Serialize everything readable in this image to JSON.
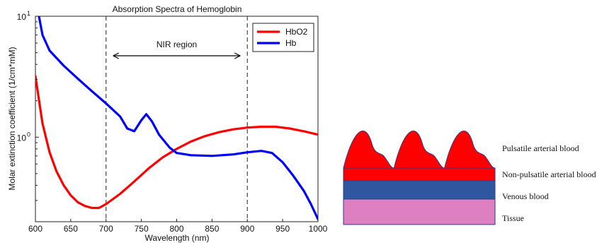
{
  "chart_data": {
    "type": "line",
    "title": "Absorption Spectra of Hemoglobin",
    "xlabel": "Wavelength (nm)",
    "ylabel": "Molar extinction coefficient (1/cm*mM)",
    "xlim": [
      600,
      1000
    ],
    "ylim": [
      0.2,
      10
    ],
    "yscale": "log",
    "xticks": [
      "600",
      "650",
      "700",
      "750",
      "800",
      "850",
      "900",
      "950",
      "1000"
    ],
    "yticks": [
      {
        "value": 1,
        "base": "10",
        "exp": "0"
      },
      {
        "value": 10,
        "base": "10",
        "exp": "1"
      }
    ],
    "legend_position": "top-right",
    "series": [
      {
        "name": "HbO2",
        "color": "#ff0000",
        "x": [
          600,
          610,
          620,
          630,
          640,
          650,
          660,
          670,
          680,
          690,
          700,
          720,
          740,
          760,
          780,
          800,
          820,
          840,
          860,
          880,
          900,
          920,
          940,
          960,
          980,
          1000
        ],
        "y": [
          3.2,
          1.3,
          0.75,
          0.52,
          0.4,
          0.33,
          0.29,
          0.27,
          0.26,
          0.26,
          0.28,
          0.34,
          0.43,
          0.55,
          0.68,
          0.8,
          0.92,
          1.02,
          1.1,
          1.16,
          1.2,
          1.22,
          1.22,
          1.18,
          1.12,
          1.05
        ]
      },
      {
        "name": "Hb",
        "color": "#0000ff",
        "x": [
          605,
          610,
          620,
          640,
          660,
          680,
          700,
          720,
          730,
          740,
          750,
          757,
          765,
          775,
          790,
          800,
          820,
          850,
          880,
          900,
          920,
          935,
          950,
          965,
          980,
          990,
          1000
        ],
        "y": [
          10,
          7.0,
          5.2,
          3.9,
          3.05,
          2.4,
          1.9,
          1.48,
          1.18,
          1.12,
          1.38,
          1.55,
          1.35,
          1.05,
          0.82,
          0.74,
          0.71,
          0.7,
          0.72,
          0.75,
          0.77,
          0.74,
          0.62,
          0.48,
          0.36,
          0.28,
          0.21
        ]
      }
    ],
    "annotations": [
      {
        "text": "NIR region",
        "from": 700,
        "to": 900
      }
    ],
    "vlines": [
      700,
      900
    ]
  },
  "diagram": {
    "layers": [
      {
        "label": "Pulsatile arterial blood",
        "color": "#ff0000"
      },
      {
        "label": "Non-pulsatile arterial blood",
        "color": "#ff0000"
      },
      {
        "label": "Venous blood",
        "color": "#2f57a0"
      },
      {
        "label": "Tissue",
        "color": "#dd7fc1"
      }
    ],
    "pulses": 3
  }
}
